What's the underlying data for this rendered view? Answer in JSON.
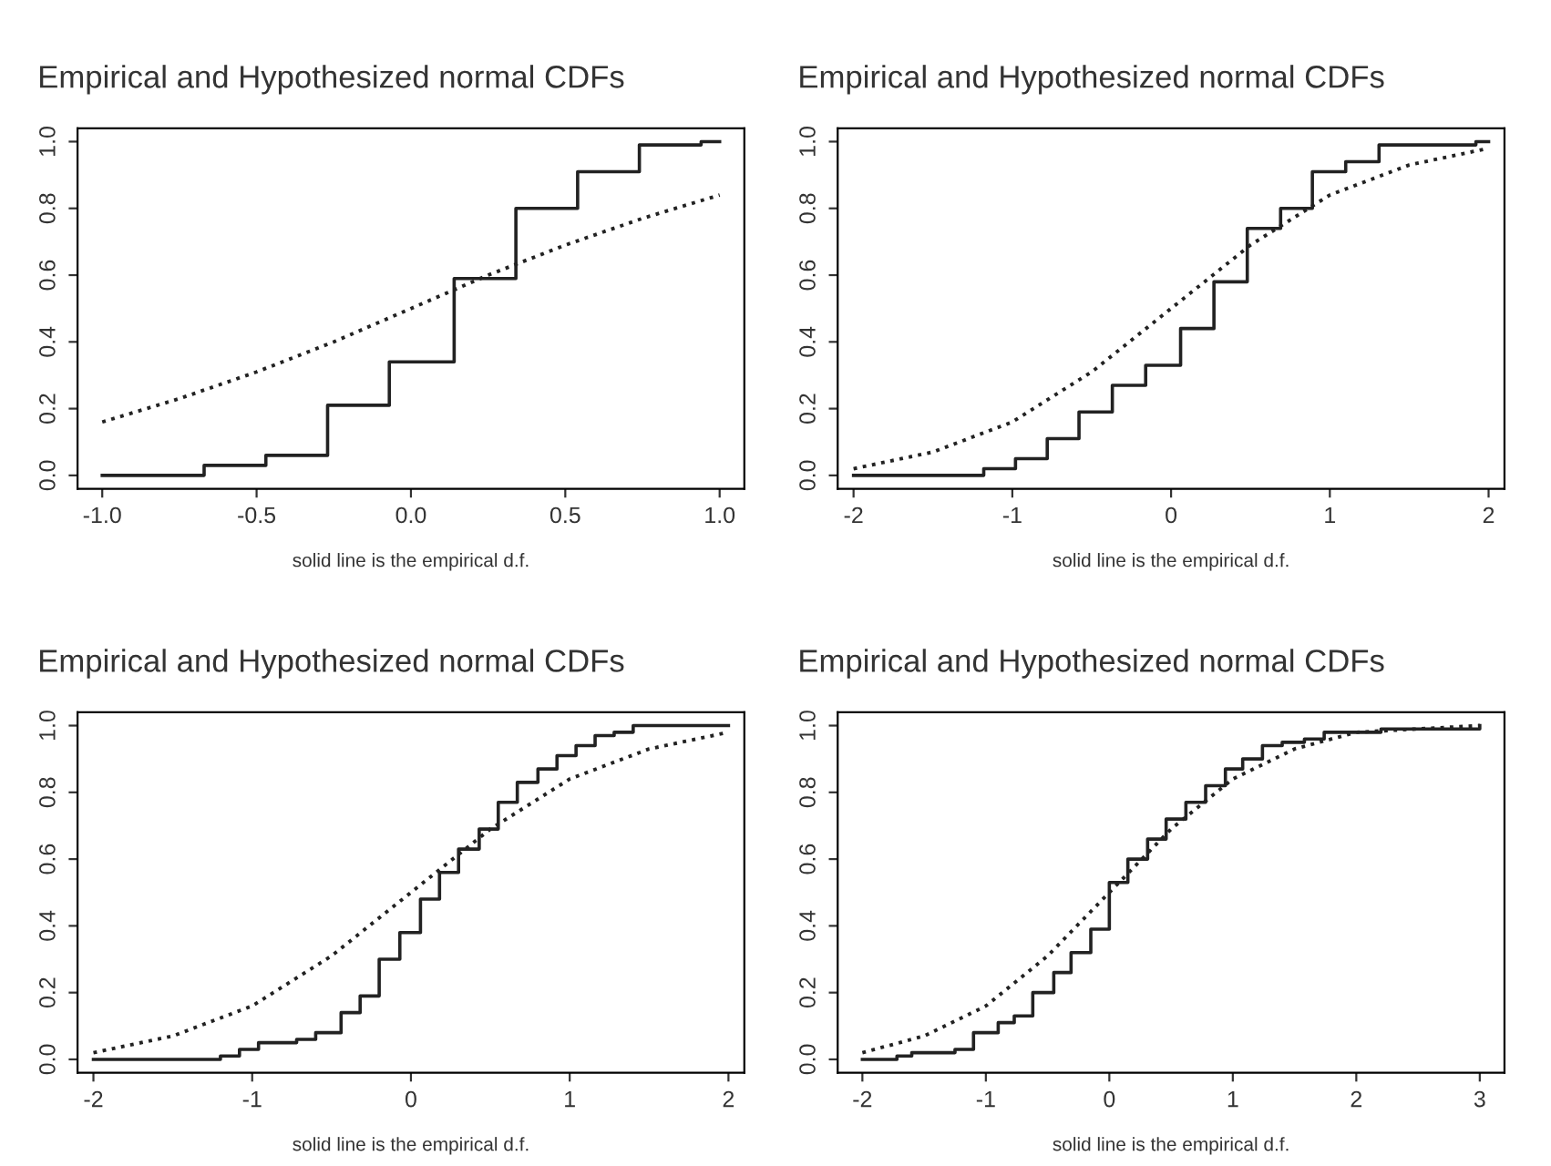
{
  "chart_data": [
    {
      "type": "step",
      "title": "Empirical and Hypothesized normal CDFs",
      "xlabel": "solid line is the empirical d.f.",
      "xlim": [
        -1.08,
        1.08
      ],
      "ylim": [
        -0.04,
        1.04
      ],
      "xticks": [
        {
          "value": -1.0,
          "label": "-1.0"
        },
        {
          "value": -0.5,
          "label": "-0.5"
        },
        {
          "value": 0.0,
          "label": "0.0"
        },
        {
          "value": 0.5,
          "label": "0.5"
        },
        {
          "value": 1.0,
          "label": "1.0"
        }
      ],
      "yticks": [
        {
          "value": 0.0,
          "label": "0.0"
        },
        {
          "value": 0.2,
          "label": "0.2"
        },
        {
          "value": 0.4,
          "label": "0.4"
        },
        {
          "value": 0.6,
          "label": "0.6"
        },
        {
          "value": 0.8,
          "label": "0.8"
        },
        {
          "value": 1.0,
          "label": "1.0"
        }
      ],
      "grid": false,
      "legend": false,
      "series": [
        {
          "color": "#222222",
          "line_style": "solid",
          "x": [
            -1.0,
            -0.67,
            -0.47,
            -0.27,
            -0.07,
            0.14,
            0.34,
            0.54,
            0.74,
            0.94,
            1.0
          ],
          "values": [
            0.0,
            0.03,
            0.06,
            0.21,
            0.34,
            0.59,
            0.8,
            0.91,
            0.99,
            1.0,
            1.0
          ]
        },
        {
          "type": "line",
          "color": "#222222",
          "line_style": "dotted",
          "x": [
            -1.0,
            -0.75,
            -0.5,
            -0.25,
            0.0,
            0.25,
            0.5,
            0.75,
            1.0
          ],
          "values": [
            0.16,
            0.23,
            0.31,
            0.4,
            0.5,
            0.6,
            0.69,
            0.77,
            0.84
          ]
        }
      ]
    },
    {
      "type": "step",
      "title": "Empirical and Hypothesized normal CDFs",
      "xlabel": "solid line is the empirical d.f.",
      "xlim": [
        -2.1,
        2.1
      ],
      "ylim": [
        -0.04,
        1.04
      ],
      "xticks": [
        -2,
        -1,
        0,
        1,
        2
      ],
      "yticks": [
        {
          "value": 0.0,
          "label": "0.0"
        },
        {
          "value": 0.2,
          "label": "0.2"
        },
        {
          "value": 0.4,
          "label": "0.4"
        },
        {
          "value": 0.6,
          "label": "0.6"
        },
        {
          "value": 0.8,
          "label": "0.8"
        },
        {
          "value": 1.0,
          "label": "1.0"
        }
      ],
      "grid": false,
      "legend": false,
      "series": [
        {
          "color": "#222222",
          "line_style": "solid",
          "x": [
            -2.0,
            -1.18,
            -0.98,
            -0.78,
            -0.58,
            -0.37,
            -0.16,
            0.06,
            0.27,
            0.48,
            0.69,
            0.89,
            1.1,
            1.31,
            1.92,
            2.0
          ],
          "values": [
            0.0,
            0.02,
            0.05,
            0.11,
            0.19,
            0.27,
            0.33,
            0.44,
            0.58,
            0.74,
            0.8,
            0.91,
            0.94,
            0.99,
            1.0,
            1.0
          ]
        },
        {
          "type": "line",
          "color": "#222222",
          "line_style": "dotted",
          "x": [
            -2.0,
            -1.5,
            -1.0,
            -0.5,
            0.0,
            0.5,
            1.0,
            1.5,
            2.0
          ],
          "values": [
            0.02,
            0.07,
            0.16,
            0.31,
            0.5,
            0.69,
            0.84,
            0.93,
            0.98
          ]
        }
      ]
    },
    {
      "type": "step",
      "title": "Empirical and Hypothesized normal CDFs",
      "xlabel": "solid line is the empirical d.f.",
      "xlim": [
        -2.1,
        2.1
      ],
      "ylim": [
        -0.04,
        1.04
      ],
      "xticks": [
        -2,
        -1,
        0,
        1,
        2
      ],
      "yticks": [
        {
          "value": 0.0,
          "label": "0.0"
        },
        {
          "value": 0.2,
          "label": "0.2"
        },
        {
          "value": 0.4,
          "label": "0.4"
        },
        {
          "value": 0.6,
          "label": "0.6"
        },
        {
          "value": 0.8,
          "label": "0.8"
        },
        {
          "value": 1.0,
          "label": "1.0"
        }
      ],
      "grid": false,
      "legend": false,
      "series": [
        {
          "color": "#222222",
          "line_style": "solid",
          "x": [
            -2.0,
            -1.2,
            -1.08,
            -0.96,
            -0.72,
            -0.6,
            -0.44,
            -0.32,
            -0.2,
            -0.07,
            0.06,
            0.18,
            0.3,
            0.43,
            0.55,
            0.67,
            0.8,
            0.92,
            1.04,
            1.16,
            1.28,
            1.4,
            2.0
          ],
          "values": [
            0.0,
            0.01,
            0.03,
            0.05,
            0.06,
            0.08,
            0.14,
            0.19,
            0.3,
            0.38,
            0.48,
            0.56,
            0.63,
            0.69,
            0.77,
            0.83,
            0.87,
            0.91,
            0.94,
            0.97,
            0.98,
            1.0,
            1.0
          ]
        },
        {
          "type": "line",
          "color": "#222222",
          "line_style": "dotted",
          "x": [
            -2.0,
            -1.5,
            -1.0,
            -0.5,
            0.0,
            0.5,
            1.0,
            1.5,
            2.0
          ],
          "values": [
            0.02,
            0.07,
            0.16,
            0.31,
            0.5,
            0.69,
            0.84,
            0.93,
            0.98
          ]
        }
      ]
    },
    {
      "type": "step",
      "title": "Empirical and Hypothesized normal CDFs",
      "xlabel": "solid line is the empirical d.f.",
      "xlim": [
        -2.2,
        3.2
      ],
      "ylim": [
        -0.04,
        1.04
      ],
      "xticks": [
        -2,
        -1,
        0,
        1,
        2,
        3
      ],
      "yticks": [
        {
          "value": 0.0,
          "label": "0.0"
        },
        {
          "value": 0.2,
          "label": "0.2"
        },
        {
          "value": 0.4,
          "label": "0.4"
        },
        {
          "value": 0.6,
          "label": "0.6"
        },
        {
          "value": 0.8,
          "label": "0.8"
        },
        {
          "value": 1.0,
          "label": "1.0"
        }
      ],
      "grid": false,
      "legend": false,
      "series": [
        {
          "color": "#222222",
          "line_style": "solid",
          "x": [
            -2.0,
            -1.72,
            -1.6,
            -1.25,
            -1.1,
            -0.9,
            -0.77,
            -0.62,
            -0.45,
            -0.31,
            -0.15,
            0.0,
            0.15,
            0.31,
            0.46,
            0.62,
            0.78,
            0.94,
            1.08,
            1.24,
            1.4,
            1.58,
            1.74,
            2.2,
            3.0
          ],
          "values": [
            0.0,
            0.01,
            0.02,
            0.03,
            0.08,
            0.11,
            0.13,
            0.2,
            0.26,
            0.32,
            0.39,
            0.53,
            0.6,
            0.66,
            0.72,
            0.77,
            0.82,
            0.87,
            0.9,
            0.94,
            0.95,
            0.96,
            0.98,
            0.99,
            1.0
          ]
        },
        {
          "type": "line",
          "color": "#222222",
          "line_style": "dotted",
          "x": [
            -2.0,
            -1.5,
            -1.0,
            -0.5,
            0.0,
            0.5,
            1.0,
            1.5,
            2.0,
            2.5,
            3.0
          ],
          "values": [
            0.02,
            0.07,
            0.16,
            0.31,
            0.5,
            0.69,
            0.84,
            0.93,
            0.98,
            0.99,
            1.0
          ]
        }
      ]
    }
  ]
}
